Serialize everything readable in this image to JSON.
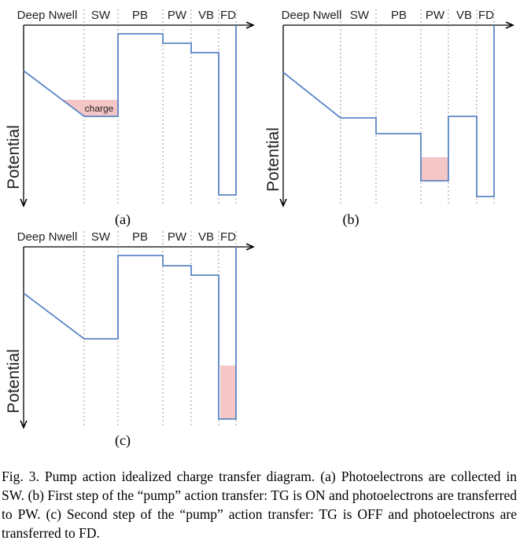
{
  "panels": [
    {
      "region_labels": [
        "Deep Nwell",
        "SW",
        "PB",
        "PW",
        "VB",
        "FD"
      ],
      "axis_label": "Potential",
      "charge_label": "charge",
      "caption": "(a)"
    },
    {
      "region_labels": [
        "Deep Nwell",
        "SW",
        "PB",
        "PW",
        "VB",
        "FD"
      ],
      "axis_label": "Potential",
      "caption": "(b)"
    },
    {
      "region_labels": [
        "Deep Nwell",
        "SW",
        "PB",
        "PW",
        "VB",
        "FD"
      ],
      "axis_label": "Potential",
      "caption": "(c)"
    }
  ],
  "caption": "Fig. 3. Pump action idealized charge transfer diagram. (a) Photoelectrons are collected in SW. (b) First step of the “pump” action transfer: TG is ON and photoelectrons are transferred to PW. (c) Second step of the “pump” action transfer: TG is OFF and photoelectrons are transferred to FD."
}
